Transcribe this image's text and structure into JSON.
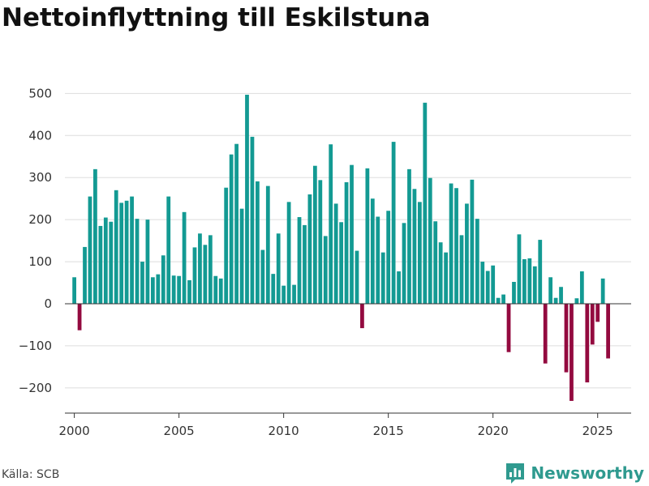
{
  "title": "Nettoinflyttning till Eskilstuna",
  "source": "Källa: SCB",
  "brand": {
    "name": "Newsworthy",
    "icon": "bar-chart-icon"
  },
  "colors": {
    "positive": "#139a93",
    "negative": "#930a3f",
    "grid": "#dddddd",
    "brand": "#2f9a8f"
  },
  "chart_data": {
    "type": "bar",
    "title": "Nettoinflyttning till Eskilstuna",
    "xlabel": "",
    "ylabel": "",
    "ylim": [
      -260,
      520
    ],
    "yticks": [
      -200,
      -100,
      0,
      100,
      200,
      300,
      400,
      500
    ],
    "ytick_labels": [
      "−200",
      "−100",
      "0",
      "100",
      "200",
      "300",
      "400",
      "500"
    ],
    "xlim": [
      1999.55,
      2026.6
    ],
    "xticks": [
      2000,
      2005,
      2010,
      2015,
      2020,
      2025
    ],
    "xtick_labels": [
      "2000",
      "2005",
      "2010",
      "2015",
      "2020",
      "2025"
    ],
    "grid": true,
    "legend": "none",
    "x_unit": "quarter",
    "start": "2000-Q1",
    "values": [
      63,
      -63,
      135,
      255,
      320,
      185,
      205,
      195,
      270,
      240,
      245,
      255,
      202,
      100,
      200,
      63,
      70,
      115,
      255,
      67,
      66,
      218,
      56,
      134,
      167,
      140,
      163,
      66,
      60,
      276,
      355,
      380,
      226,
      497,
      397,
      291,
      128,
      280,
      71,
      167,
      43,
      242,
      45,
      206,
      187,
      260,
      328,
      294,
      161,
      379,
      238,
      194,
      289,
      330,
      126,
      -58,
      322,
      250,
      207,
      122,
      221,
      385,
      77,
      192,
      320,
      273,
      242,
      478,
      299,
      196,
      146,
      122,
      286,
      275,
      163,
      238,
      295,
      202,
      100,
      78,
      91,
      14,
      22,
      -115,
      52,
      165,
      106,
      108,
      89,
      152,
      -142,
      63,
      14,
      40,
      -163,
      -231,
      13,
      77,
      -187,
      -97,
      -43,
      60,
      -130
    ]
  }
}
